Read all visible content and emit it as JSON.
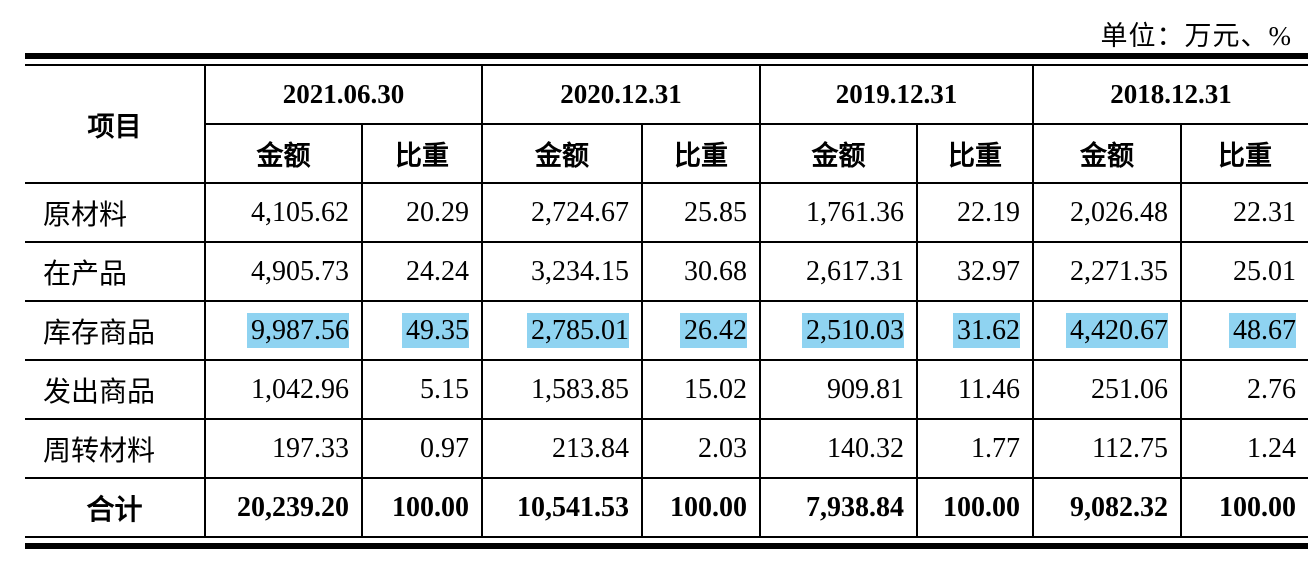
{
  "unit": "单位：万元、%",
  "table": {
    "corner": "项目",
    "periods": [
      "2021.06.30",
      "2020.12.31",
      "2019.12.31",
      "2018.12.31"
    ],
    "subheaders": [
      "金额",
      "比重"
    ],
    "rows": [
      {
        "label": "原材料",
        "cells": [
          "4,105.62",
          "20.29",
          "2,724.67",
          "25.85",
          "1,761.36",
          "22.19",
          "2,026.48",
          "22.31"
        ]
      },
      {
        "label": "在产品",
        "cells": [
          "4,905.73",
          "24.24",
          "3,234.15",
          "30.68",
          "2,617.31",
          "32.97",
          "2,271.35",
          "25.01"
        ]
      },
      {
        "label": "库存商品",
        "cells": [
          "9,987.56",
          "49.35",
          "2,785.01",
          "26.42",
          "2,510.03",
          "31.62",
          "4,420.67",
          "48.67"
        ]
      },
      {
        "label": "发出商品",
        "cells": [
          "1,042.96",
          "5.15",
          "1,583.85",
          "15.02",
          "909.81",
          "11.46",
          "251.06",
          "2.76"
        ]
      },
      {
        "label": "周转材料",
        "cells": [
          "197.33",
          "0.97",
          "213.84",
          "2.03",
          "140.32",
          "1.77",
          "112.75",
          "1.24"
        ]
      }
    ],
    "total": {
      "label": "合计",
      "cells": [
        "20,239.20",
        "100.00",
        "10,541.53",
        "100.00",
        "7,938.84",
        "100.00",
        "9,082.32",
        "100.00"
      ]
    }
  }
}
